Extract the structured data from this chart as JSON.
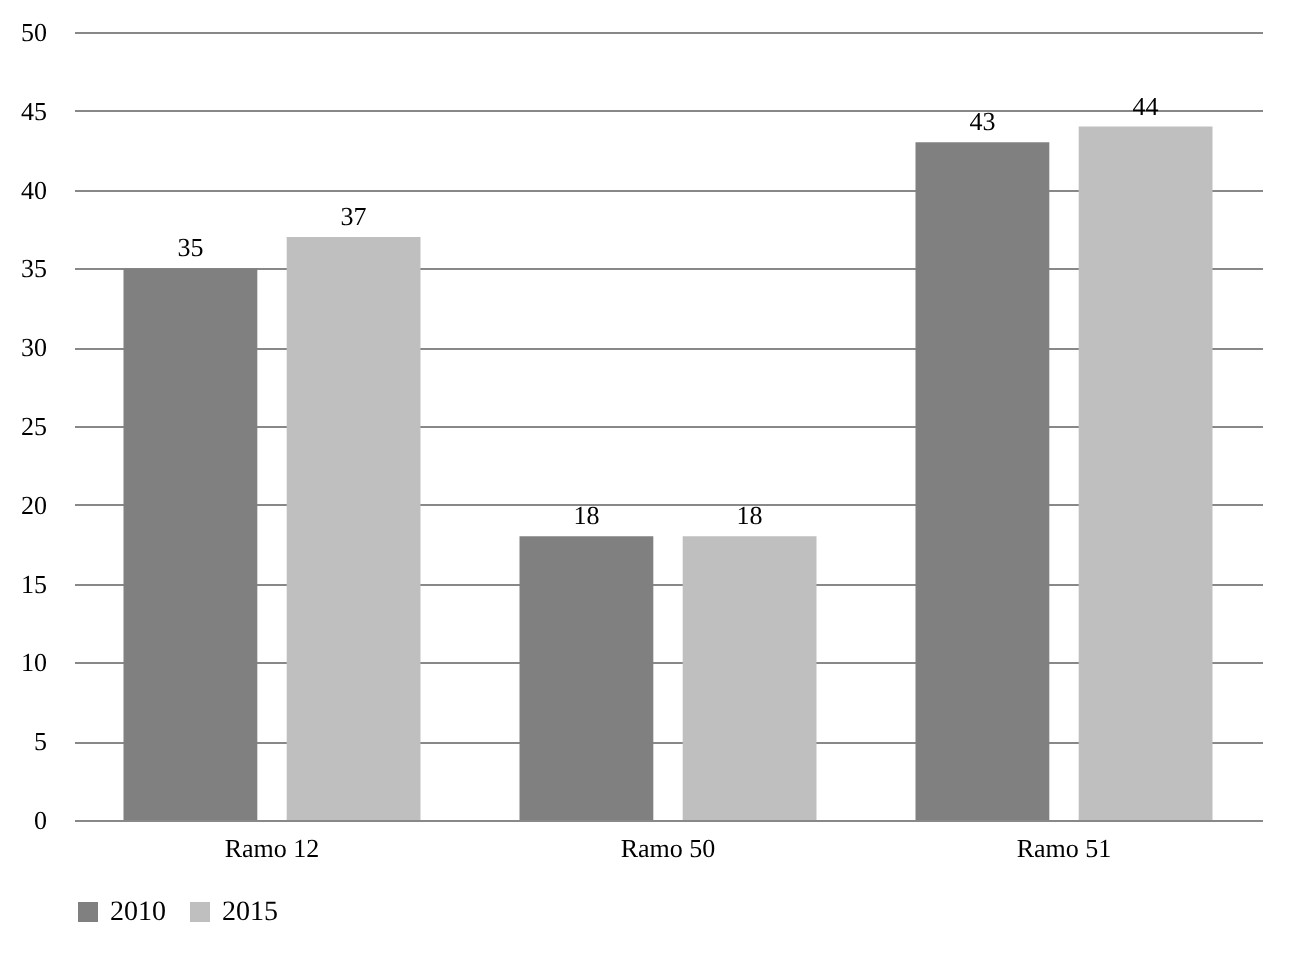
{
  "chart_data": {
    "type": "bar",
    "categories": [
      "Ramo 12",
      "Ramo 50",
      "Ramo 51"
    ],
    "series": [
      {
        "name": "2010",
        "color": "#808080",
        "values": [
          35,
          18,
          43
        ]
      },
      {
        "name": "2015",
        "color": "#bfbfbf",
        "values": [
          37,
          18,
          44
        ]
      }
    ],
    "ylim": [
      0,
      50
    ],
    "yticks": [
      0,
      5,
      10,
      15,
      20,
      25,
      30,
      35,
      40,
      45,
      50
    ],
    "grid": "y",
    "legend": "bottom",
    "data_labels": true
  }
}
